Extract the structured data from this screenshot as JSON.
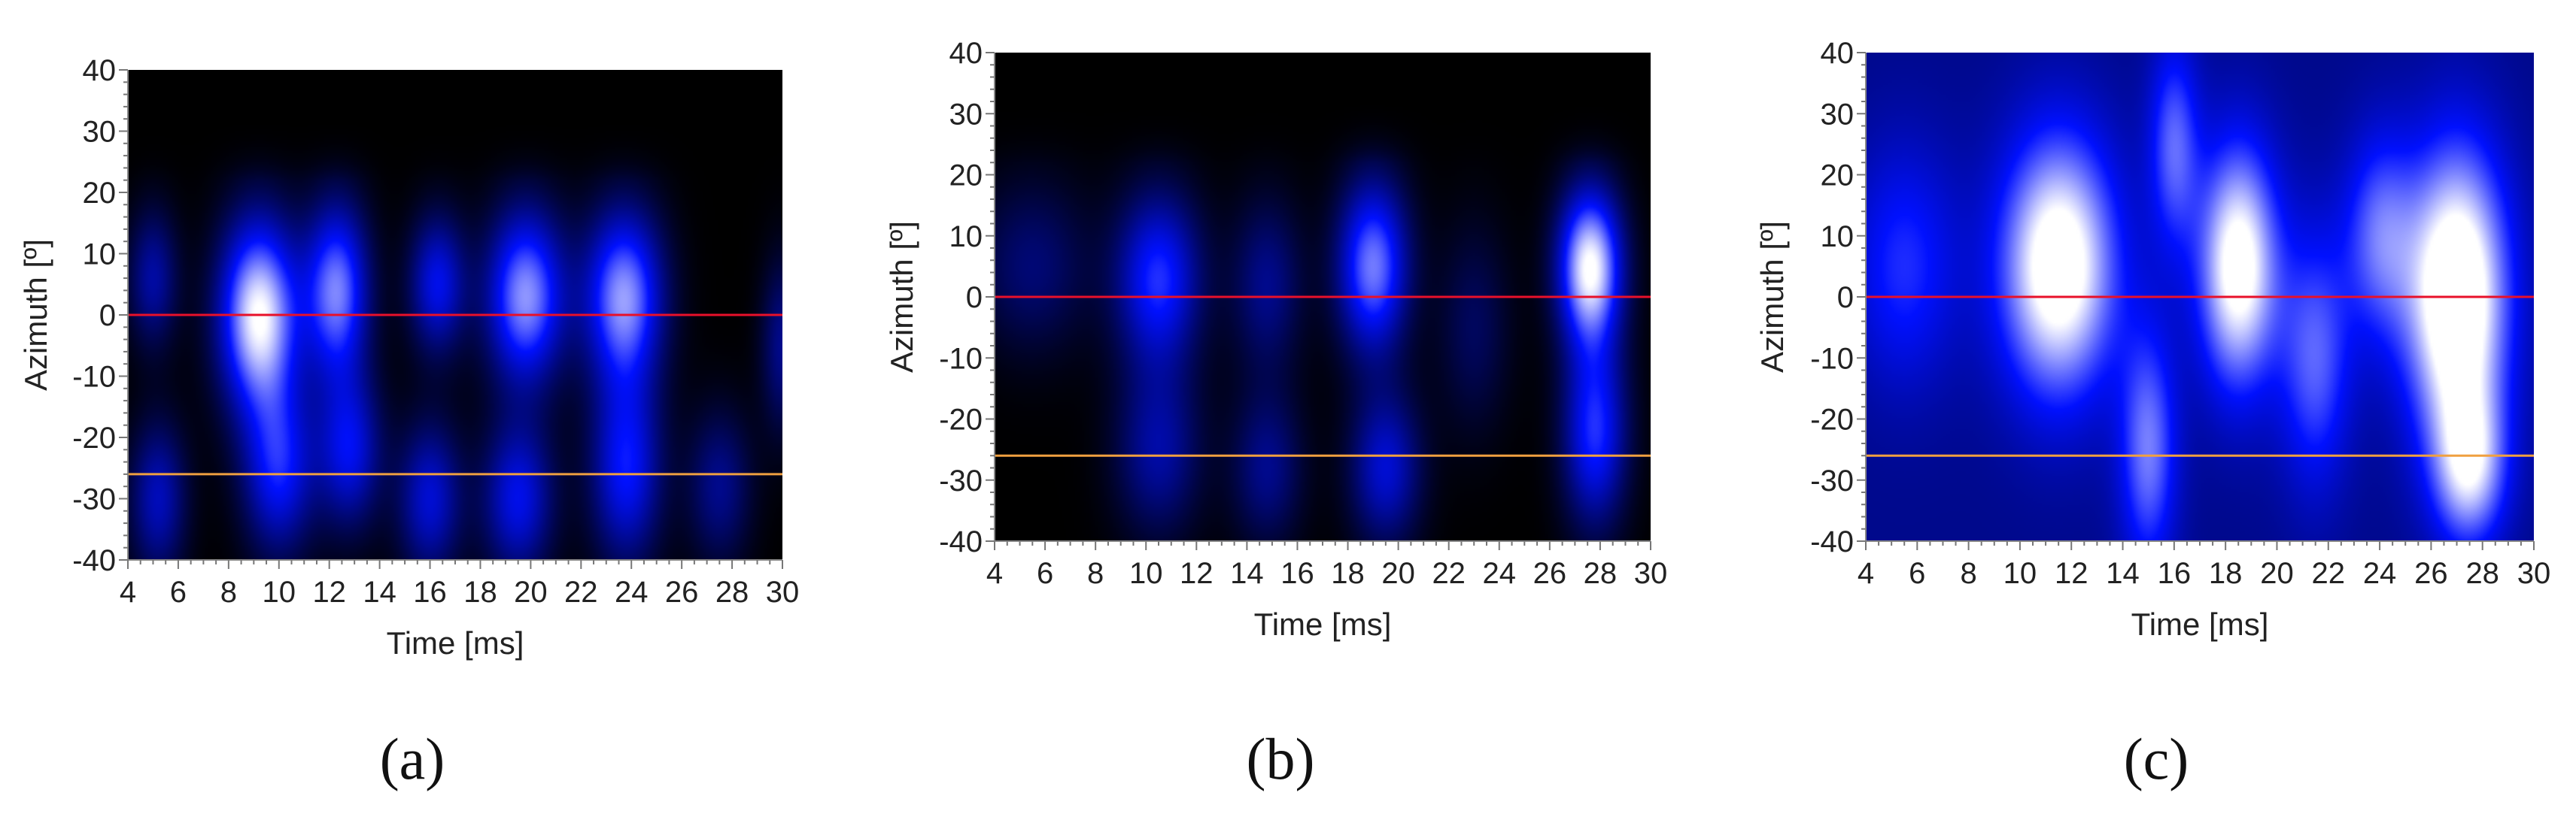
{
  "figure": {
    "colors": {
      "background": "#000000",
      "low": "#0010ff",
      "high": "#ffffff",
      "line_red": "#e8102a",
      "line_orange": "#f0a040",
      "axis_text": "#222222"
    },
    "captions": [
      "(a)",
      "(b)",
      "(c)"
    ]
  },
  "chart_data": [
    {
      "type": "heatmap",
      "panel": "a",
      "title": "",
      "xlabel": "Time [ms]",
      "ylabel": "Azimuth [º]",
      "xlim": [
        4,
        30
      ],
      "ylim": [
        -40,
        40
      ],
      "xticks": [
        4,
        6,
        8,
        10,
        12,
        14,
        16,
        18,
        20,
        22,
        24,
        26,
        28,
        30
      ],
      "yticks": [
        40,
        30,
        20,
        10,
        0,
        -10,
        -20,
        -30,
        -40
      ],
      "grid": false,
      "reference_lines": [
        {
          "azimuth": 0,
          "color": "red"
        },
        {
          "azimuth": -26,
          "color": "orange"
        }
      ],
      "background_level": 0.0,
      "blobs": [
        {
          "time": 5.0,
          "azimuth": 6,
          "time_spread": 0.7,
          "azimuth_spread": 8,
          "intensity": 0.35
        },
        {
          "time": 5.2,
          "azimuth": -30,
          "time_spread": 0.8,
          "azimuth_spread": 9,
          "intensity": 0.4
        },
        {
          "time": 9.2,
          "azimuth": 0,
          "time_spread": 1.1,
          "azimuth_spread": 11,
          "intensity": 1.0
        },
        {
          "time": 10.0,
          "azimuth": -25,
          "time_spread": 1.0,
          "azimuth_spread": 10,
          "intensity": 0.55
        },
        {
          "time": 12.3,
          "azimuth": 4,
          "time_spread": 0.9,
          "azimuth_spread": 10,
          "intensity": 0.75
        },
        {
          "time": 12.8,
          "azimuth": -22,
          "time_spread": 0.9,
          "azimuth_spread": 9,
          "intensity": 0.5
        },
        {
          "time": 16.3,
          "azimuth": 5,
          "time_spread": 0.8,
          "azimuth_spread": 8,
          "intensity": 0.5
        },
        {
          "time": 16.0,
          "azimuth": -30,
          "time_spread": 0.9,
          "azimuth_spread": 9,
          "intensity": 0.45
        },
        {
          "time": 19.8,
          "azimuth": 3,
          "time_spread": 1.1,
          "azimuth_spread": 10,
          "intensity": 0.8
        },
        {
          "time": 19.5,
          "azimuth": -30,
          "time_spread": 1.0,
          "azimuth_spread": 9,
          "intensity": 0.5
        },
        {
          "time": 23.7,
          "azimuth": 3,
          "time_spread": 1.1,
          "azimuth_spread": 10,
          "intensity": 0.8
        },
        {
          "time": 23.8,
          "azimuth": -25,
          "time_spread": 1.0,
          "azimuth_spread": 11,
          "intensity": 0.55
        },
        {
          "time": 27.5,
          "azimuth": -28,
          "time_spread": 0.9,
          "azimuth_spread": 9,
          "intensity": 0.3
        },
        {
          "time": 30.0,
          "azimuth": -5,
          "time_spread": 0.6,
          "azimuth_spread": 10,
          "intensity": 0.3
        }
      ]
    },
    {
      "type": "heatmap",
      "panel": "b",
      "title": "",
      "xlabel": "Time [ms]",
      "ylabel": "Azimuth [º]",
      "xlim": [
        4,
        30
      ],
      "ylim": [
        -40,
        40
      ],
      "xticks": [
        4,
        6,
        8,
        10,
        12,
        14,
        16,
        18,
        20,
        22,
        24,
        26,
        28,
        30
      ],
      "yticks": [
        40,
        30,
        20,
        10,
        0,
        -10,
        -20,
        -30,
        -40
      ],
      "grid": false,
      "reference_lines": [
        {
          "azimuth": 0,
          "color": "red"
        },
        {
          "azimuth": -26,
          "color": "orange"
        }
      ],
      "background_level": 0.0,
      "blobs": [
        {
          "time": 5.5,
          "azimuth": 5,
          "time_spread": 1.6,
          "azimuth_spread": 10,
          "intensity": 0.25
        },
        {
          "time": 10.5,
          "azimuth": 3,
          "time_spread": 1.2,
          "azimuth_spread": 10,
          "intensity": 0.6
        },
        {
          "time": 10.5,
          "azimuth": -25,
          "time_spread": 1.2,
          "azimuth_spread": 10,
          "intensity": 0.35
        },
        {
          "time": 14.8,
          "azimuth": 2,
          "time_spread": 1.0,
          "azimuth_spread": 10,
          "intensity": 0.3
        },
        {
          "time": 14.8,
          "azimuth": -28,
          "time_spread": 1.0,
          "azimuth_spread": 9,
          "intensity": 0.3
        },
        {
          "time": 19.0,
          "azimuth": 5,
          "time_spread": 1.0,
          "azimuth_spread": 10,
          "intensity": 0.75
        },
        {
          "time": 19.5,
          "azimuth": -28,
          "time_spread": 1.0,
          "azimuth_spread": 9,
          "intensity": 0.45
        },
        {
          "time": 23.0,
          "azimuth": -5,
          "time_spread": 1.0,
          "azimuth_spread": 12,
          "intensity": 0.2
        },
        {
          "time": 27.6,
          "azimuth": 5,
          "time_spread": 0.9,
          "azimuth_spread": 9,
          "intensity": 1.0
        },
        {
          "time": 27.8,
          "azimuth": -22,
          "time_spread": 0.9,
          "azimuth_spread": 11,
          "intensity": 0.6
        }
      ]
    },
    {
      "type": "heatmap",
      "panel": "c",
      "title": "",
      "xlabel": "Time [ms]",
      "ylabel": "Azimuth [º]",
      "xlim": [
        4,
        30
      ],
      "ylim": [
        -40,
        40
      ],
      "xticks": [
        4,
        6,
        8,
        10,
        12,
        14,
        16,
        18,
        20,
        22,
        24,
        26,
        28,
        30
      ],
      "yticks": [
        40,
        30,
        20,
        10,
        0,
        -10,
        -20,
        -30,
        -40
      ],
      "grid": false,
      "reference_lines": [
        {
          "azimuth": 0,
          "color": "red"
        },
        {
          "azimuth": -26,
          "color": "orange"
        }
      ],
      "background_level": 0.3,
      "blobs": [
        {
          "time": 5.5,
          "azimuth": 5,
          "time_spread": 1.5,
          "azimuth_spread": 14,
          "intensity": 0.3
        },
        {
          "time": 11.5,
          "azimuth": 5,
          "time_spread": 1.6,
          "azimuth_spread": 15,
          "intensity": 0.85
        },
        {
          "time": 15.0,
          "azimuth": -25,
          "time_spread": 0.8,
          "azimuth_spread": 14,
          "intensity": 0.45
        },
        {
          "time": 16.0,
          "azimuth": 25,
          "time_spread": 0.7,
          "azimuth_spread": 12,
          "intensity": 0.4
        },
        {
          "time": 18.5,
          "azimuth": 5,
          "time_spread": 1.1,
          "azimuth_spread": 14,
          "intensity": 0.8
        },
        {
          "time": 21.5,
          "azimuth": -10,
          "time_spread": 1.0,
          "azimuth_spread": 15,
          "intensity": 0.4
        },
        {
          "time": 24.0,
          "azimuth": 10,
          "time_spread": 1.0,
          "azimuth_spread": 12,
          "intensity": 0.4
        },
        {
          "time": 27.0,
          "azimuth": 0,
          "time_spread": 1.4,
          "azimuth_spread": 17,
          "intensity": 0.95
        },
        {
          "time": 27.5,
          "azimuth": -28,
          "time_spread": 1.0,
          "azimuth_spread": 9,
          "intensity": 0.55
        }
      ]
    }
  ]
}
